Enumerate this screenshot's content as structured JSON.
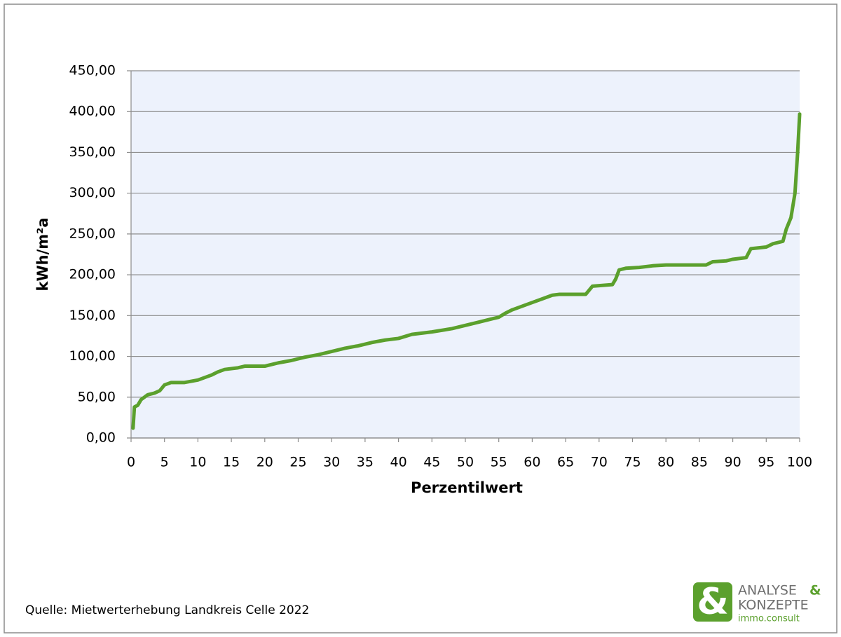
{
  "chart_data": {
    "type": "line",
    "x": [
      0.3,
      0.5,
      1,
      1.5,
      2.5,
      3.5,
      4.3,
      5,
      6,
      8,
      10,
      12,
      13,
      14,
      16,
      17,
      20,
      22,
      24,
      26,
      28,
      30,
      32,
      34,
      36,
      38,
      40,
      42,
      45,
      48,
      50,
      52,
      54,
      55,
      56,
      57,
      58,
      60,
      62,
      63,
      64,
      68,
      69,
      72,
      72.5,
      73,
      74,
      76,
      78,
      80,
      86,
      87,
      89,
      90,
      92,
      92.7,
      95,
      96,
      97.5,
      98,
      98.7,
      99.3,
      99.7,
      100
    ],
    "series": [
      {
        "name": "kWh/m²a",
        "color": "#5ba02d",
        "values": [
          12,
          38,
          40,
          47,
          53,
          55,
          58,
          65,
          68,
          68,
          71,
          77,
          81,
          84,
          86,
          88,
          88,
          92,
          95,
          99,
          102,
          106,
          110,
          113,
          117,
          120,
          122,
          127,
          130,
          134,
          138,
          142,
          146,
          148,
          153,
          157,
          160,
          166,
          172,
          175,
          176,
          176,
          186,
          188,
          195,
          206,
          208,
          209,
          211,
          212,
          212,
          216,
          217,
          219,
          221,
          232,
          234,
          238,
          241,
          256,
          270,
          300,
          350,
          397
        ]
      }
    ],
    "x_label": "Perzentilwert",
    "y_label": "kWh/m²a",
    "xlim": [
      0,
      100
    ],
    "xticks": [
      0,
      5,
      10,
      15,
      20,
      25,
      30,
      35,
      40,
      45,
      50,
      55,
      60,
      65,
      70,
      75,
      80,
      85,
      90,
      95,
      100
    ],
    "ylim": [
      0,
      450
    ],
    "yticks": [
      {
        "value": 0,
        "label": "0,00"
      },
      {
        "value": 50,
        "label": "50,00"
      },
      {
        "value": 100,
        "label": "100,00"
      },
      {
        "value": 150,
        "label": "150,00"
      },
      {
        "value": 200,
        "label": "200,00"
      },
      {
        "value": 250,
        "label": "250,00"
      },
      {
        "value": 300,
        "label": "300,00"
      },
      {
        "value": 350,
        "label": "350,00"
      },
      {
        "value": 400,
        "label": "400,00"
      },
      {
        "value": 450,
        "label": "450,00"
      }
    ],
    "grid": true,
    "plot_background": "#edf2fc"
  },
  "source": "Quelle: Mietwerterhebung Landkreis Celle 2022",
  "logo": {
    "line1": "ANALYSE",
    "amp": "&",
    "line2": "KONZEPTE",
    "line3": "immo.consult"
  }
}
